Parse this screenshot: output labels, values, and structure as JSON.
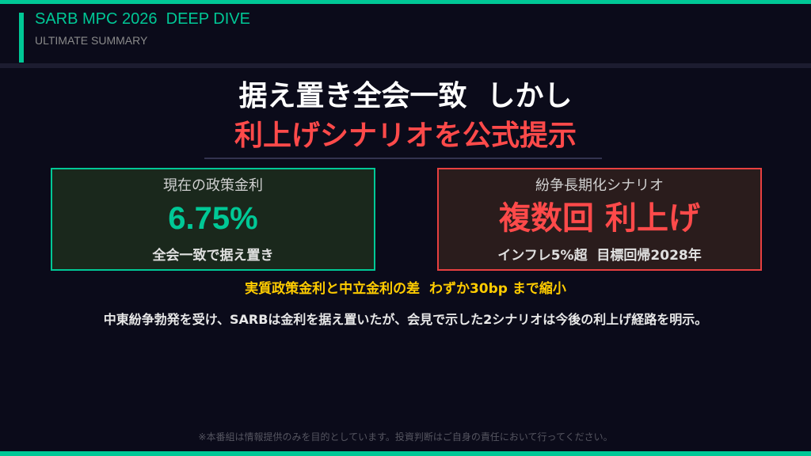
{
  "colors": {
    "accent": "#00c896",
    "alert": "#ff4a4a",
    "highlight": "#ffcc00",
    "background": "#0b0b1a"
  },
  "header": {
    "title": "SARB MPC 2026  DEEP DIVE",
    "subtitle": "ULTIMATE SUMMARY"
  },
  "headline": {
    "line1": "据え置き全会一致  しかし",
    "line2": "利上げシナリオを公式提示"
  },
  "cards": [
    {
      "label": "現在の政策金利",
      "value": "6.75%",
      "sub": "全会一致で据え置き"
    },
    {
      "label": "紛争長期化シナリオ",
      "value": "複数回 利上げ",
      "sub": "インフレ5%超  目標回帰2028年"
    }
  ],
  "highlight": "実質政策金利と中立金利の差  わずか30bp まで縮小",
  "description": "中東紛争勃発を受け、SARBは金利を据え置いたが、会見で示した2シナリオは今後の利上げ経路を明示。",
  "disclaimer": "※本番組は情報提供のみを目的としています。投資判断はご自身の責任において行ってください。"
}
